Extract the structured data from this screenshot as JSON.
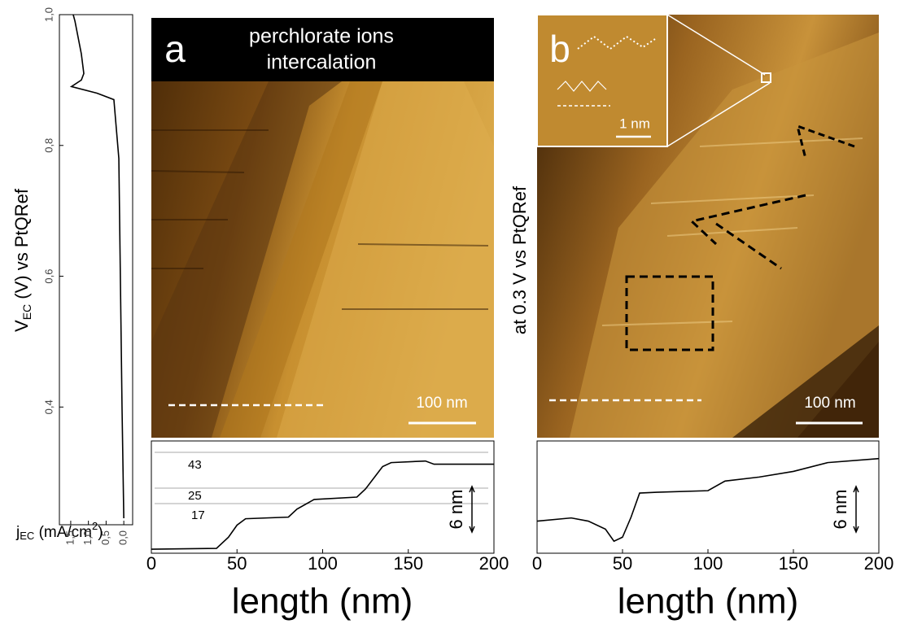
{
  "chart_data": [
    {
      "type": "line",
      "color": "#000000",
      "x": [
        0.0,
        0.05,
        0.14,
        0.28,
        0.76,
        1.48,
        1.2,
        1.13,
        1.2,
        1.38,
        1.43
      ],
      "values": [
        0.23,
        0.4,
        0.78,
        0.87,
        0.88,
        0.89,
        0.9,
        0.91,
        0.94,
        0.99,
        1.0
      ],
      "xlim": [
        1.82,
        -0.25
      ],
      "ylim": [
        0.22,
        1.0
      ],
      "xticks": [
        {
          "value": 1.5,
          "label": "1,5"
        },
        {
          "value": 1.0,
          "label": "1,0"
        },
        {
          "value": 0.5,
          "label": "0,5"
        },
        {
          "value": 0.0,
          "label": "0,0"
        }
      ],
      "yticks": [
        {
          "value": 0.4,
          "label": "0,4"
        },
        {
          "value": 0.6,
          "label": "0,6"
        },
        {
          "value": 0.8,
          "label": "0,8"
        },
        {
          "value": 1.0,
          "label": "1,0"
        }
      ],
      "ylabel": {
        "main": "V",
        "sub": "EC",
        "rest": " (V) vs PtQRef"
      },
      "xlabel": {
        "main": "j",
        "sub": "EC",
        "rest": " (mA/cm",
        "sup": "2",
        "end": ")"
      }
    },
    {
      "type": "line",
      "color": "#000000",
      "x": [
        0,
        38,
        45,
        50,
        55,
        80,
        85,
        95,
        120,
        125,
        135,
        140,
        160,
        165,
        200
      ],
      "values": [
        0.5,
        0.6,
        2,
        3.5,
        4.3,
        4.5,
        5.5,
        6.7,
        7,
        8,
        10.8,
        11.3,
        11.5,
        11.1,
        11.1
      ],
      "xlim": [
        0,
        200
      ],
      "ylim": [
        0,
        14
      ],
      "xticks": [
        0,
        50,
        100,
        150,
        200
      ],
      "xlabel": "length (nm)",
      "annotations": [
        43,
        25,
        17
      ],
      "scale_label": "6 nm"
    },
    {
      "type": "line",
      "color": "#000000",
      "x": [
        0,
        20,
        30,
        40,
        45,
        50,
        55,
        60,
        70,
        100,
        110,
        130,
        150,
        170,
        200
      ],
      "values": [
        4.0,
        4.4,
        4.0,
        3.0,
        1.5,
        2.0,
        4.5,
        7.5,
        7.6,
        7.8,
        9.0,
        9.5,
        10.2,
        11.3,
        11.8
      ],
      "xlim": [
        0,
        200
      ],
      "ylim": [
        0,
        14
      ],
      "xticks": [
        0,
        50,
        100,
        150,
        200
      ],
      "xlabel": "length (nm)",
      "scale_label": "6 nm"
    }
  ],
  "panels": [
    {
      "label": "a",
      "header": [
        "perchlorate ions",
        "intercalation"
      ],
      "scale_bar": "100 nm"
    },
    {
      "label": "b",
      "side_label": "at 0.3 V vs PtQRef",
      "scale_bar": "100 nm",
      "inset_scale_bar": "1 nm"
    }
  ]
}
